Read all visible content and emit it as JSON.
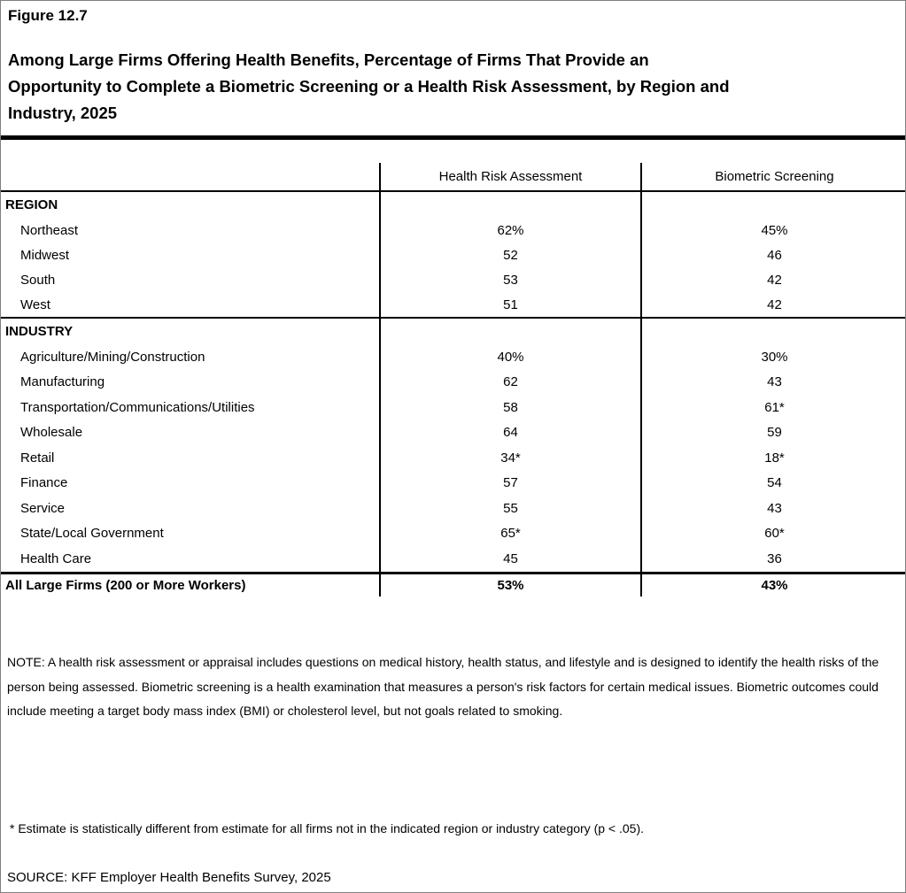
{
  "page": {
    "figure_label": "Figure 12.7",
    "title_lines": [
      "Among Large Firms Offering Health Benefits, Percentage of Firms That Provide an",
      "Opportunity to Complete a Biometric Screening or a Health Risk Assessment, by Region and",
      "Industry, 2025"
    ]
  },
  "chart_data": {
    "type": "table",
    "title": "Among Large Firms Offering Health Benefits, Percentage of Firms That Provide an Opportunity to Complete a Biometric Screening or a Health Risk Assessment, by Region and Industry, 2025",
    "columns": [
      "Health Risk Assessment",
      "Biometric Screening"
    ],
    "sections": [
      {
        "heading": "REGION",
        "rows": [
          {
            "label": "Northeast",
            "hra": "62%",
            "bio": "45%"
          },
          {
            "label": "Midwest",
            "hra": "52",
            "bio": "46"
          },
          {
            "label": "South",
            "hra": "53",
            "bio": "42"
          },
          {
            "label": "West",
            "hra": "51",
            "bio": "42"
          }
        ]
      },
      {
        "heading": "INDUSTRY",
        "rows": [
          {
            "label": "Agriculture/Mining/Construction",
            "hra": "40%",
            "bio": "30%"
          },
          {
            "label": "Manufacturing",
            "hra": "62",
            "bio": "43"
          },
          {
            "label": "Transportation/Communications/Utilities",
            "hra": "58",
            "bio": "61*"
          },
          {
            "label": "Wholesale",
            "hra": "64",
            "bio": "59"
          },
          {
            "label": "Retail",
            "hra": "34*",
            "bio": "18*"
          },
          {
            "label": "Finance",
            "hra": "57",
            "bio": "54"
          },
          {
            "label": "Service",
            "hra": "55",
            "bio": "43"
          },
          {
            "label": "State/Local Government",
            "hra": "65*",
            "bio": "60*"
          },
          {
            "label": "Health Care",
            "hra": "45",
            "bio": "36"
          }
        ]
      }
    ],
    "total_row": {
      "label": "All Large Firms (200 or More Workers)",
      "hra": "53%",
      "bio": "43%"
    }
  },
  "notes": {
    "note": "NOTE: A health risk assessment or appraisal includes questions on medical history, health status, and lifestyle and is designed to identify the health risks of the person being assessed.  Biometric screening is a health examination that measures a person's risk factors for certain medical issues. Biometric outcomes could include meeting a target body mass index (BMI) or cholesterol level, but not goals related to smoking.",
    "footnote": "* Estimate is statistically different from estimate for all firms not in the indicated region or industry category (p < .05).",
    "source": "SOURCE: KFF Employer Health Benefits Survey, 2025"
  },
  "colors": {
    "text": "#000000",
    "background": "#ffffff",
    "table_lines": "#000000",
    "page_border": "#7f7f7f"
  }
}
